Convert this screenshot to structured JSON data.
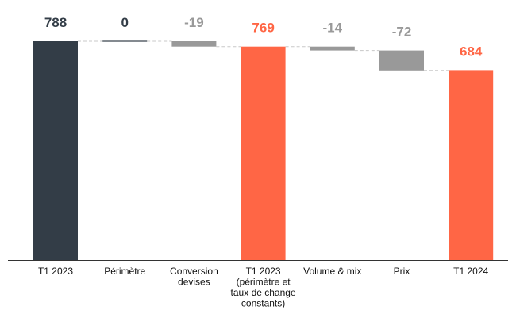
{
  "chart_data": {
    "type": "waterfall",
    "title": "",
    "xlabel": "",
    "ylabel": "",
    "ylim": [
      0,
      788
    ],
    "grid": false,
    "legend": "none",
    "categories": [
      [
        "T1 2023"
      ],
      [
        "Périmètre"
      ],
      [
        "Conversion",
        "devises"
      ],
      [
        "T1 2023",
        "(périmètre et",
        "taux de change",
        "constants)"
      ],
      [
        "Volume & mix"
      ],
      [
        "Prix"
      ],
      [
        "T1 2024"
      ]
    ],
    "bars": [
      {
        "kind": "total",
        "value": 788,
        "label": "788",
        "color": "#333d47",
        "label_color": "#333d47"
      },
      {
        "kind": "delta",
        "value": 0,
        "label": "0",
        "color": "#333d47",
        "label_color": "#333d47"
      },
      {
        "kind": "delta",
        "value": -19,
        "label": "-19",
        "color": "#999999",
        "label_color": "#999999"
      },
      {
        "kind": "total",
        "value": 769,
        "label": "769",
        "color": "#ff6645",
        "label_color": "#ff6645"
      },
      {
        "kind": "delta",
        "value": -14,
        "label": "-14",
        "color": "#999999",
        "label_color": "#999999"
      },
      {
        "kind": "delta",
        "value": -72,
        "label": "-72",
        "color": "#999999",
        "label_color": "#999999"
      },
      {
        "kind": "total",
        "value": 684,
        "label": "684",
        "color": "#ff6645",
        "label_color": "#ff6645"
      }
    ],
    "connector_color": "#c8c8c8",
    "axis_color": "#333333"
  }
}
